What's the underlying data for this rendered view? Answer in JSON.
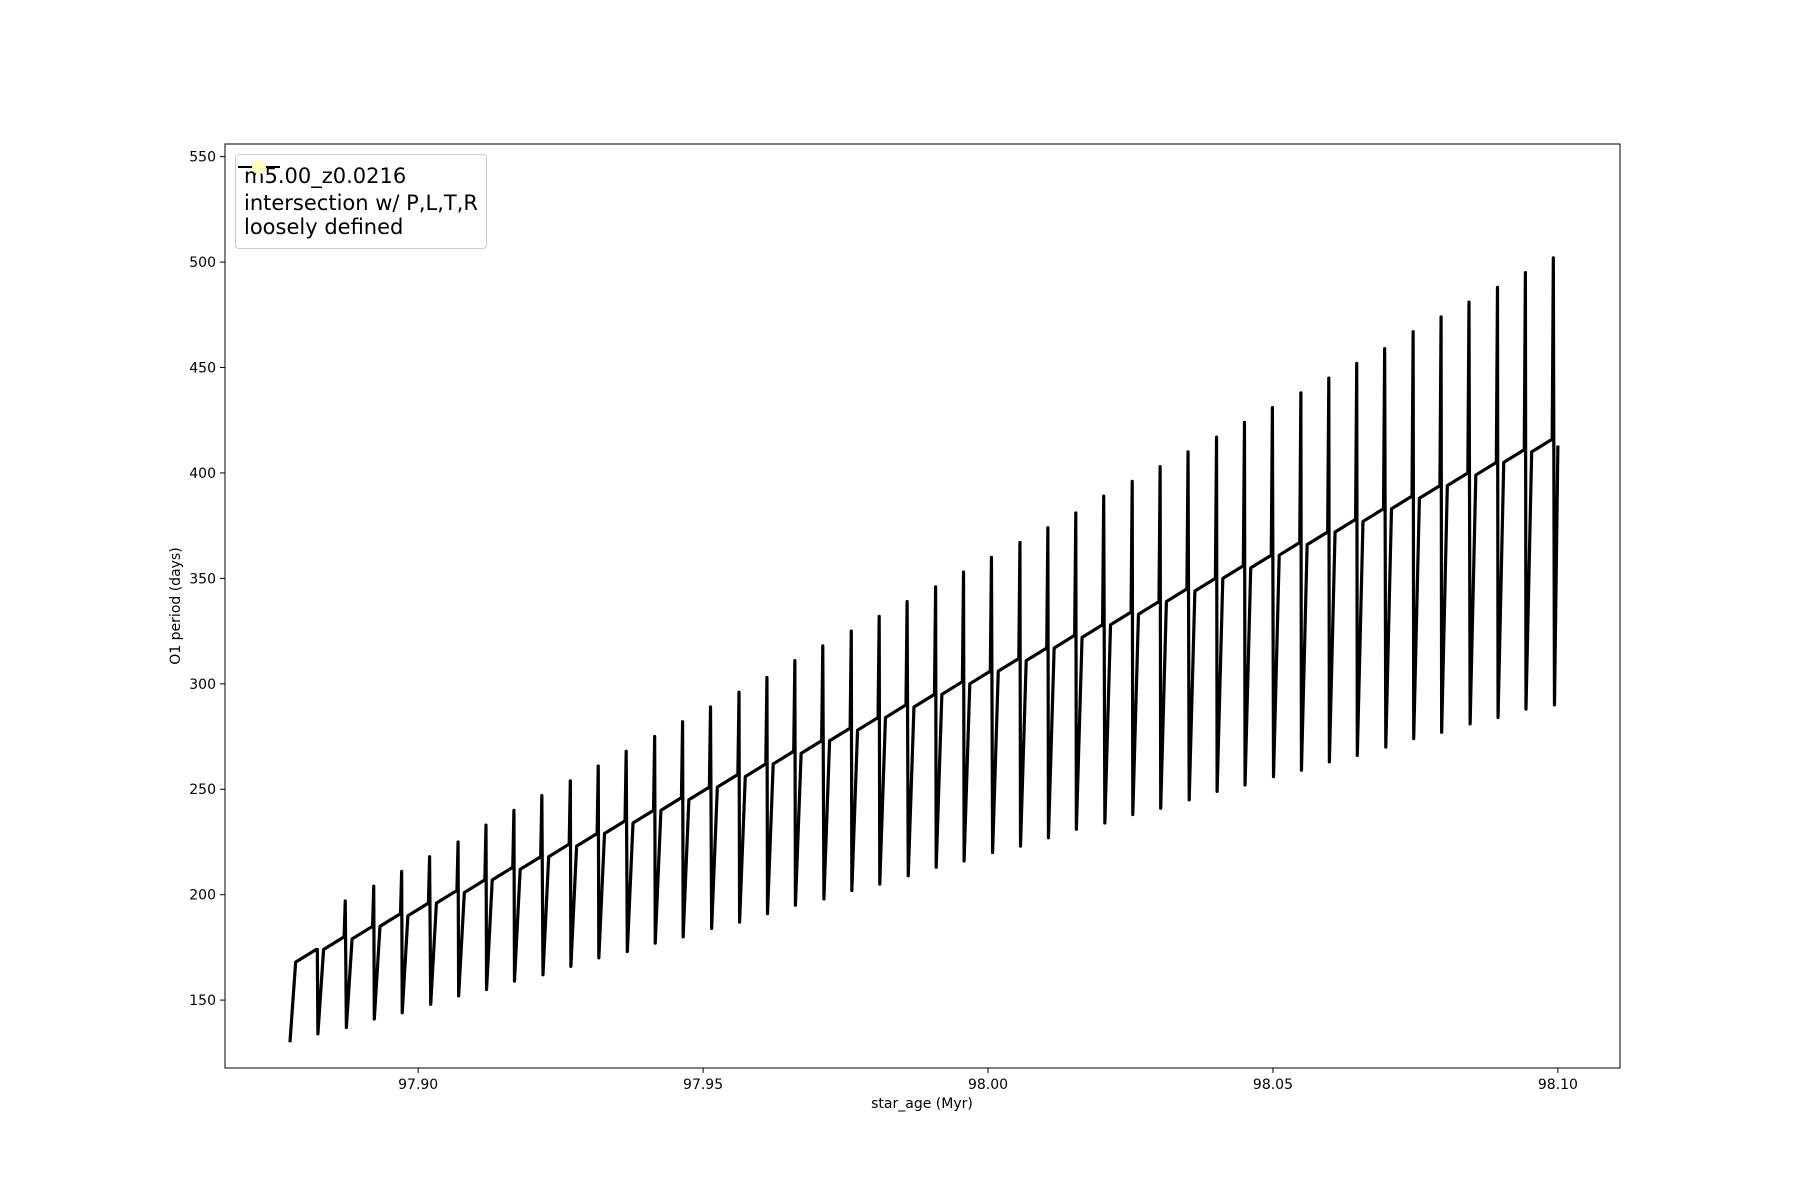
{
  "chart_data": {
    "type": "line",
    "xlabel": "star_age (Myr)",
    "ylabel": "O1 period (days)",
    "xlim": [
      97.8661,
      98.1109
    ],
    "ylim": [
      117.8,
      556
    ],
    "xticks": [
      {
        "value": 97.9,
        "label": "97.90"
      },
      {
        "value": 97.95,
        "label": "97.95"
      },
      {
        "value": 98.0,
        "label": "98.00"
      },
      {
        "value": 98.05,
        "label": "98.05"
      },
      {
        "value": 98.1,
        "label": "98.10"
      }
    ],
    "yticks": [
      150,
      200,
      250,
      300,
      350,
      400,
      450,
      500,
      550
    ],
    "grid": false,
    "legend": "upper left",
    "series": [
      {
        "name": "m5.00_z0.0216",
        "type": "line",
        "color": "#000000",
        "x": [
          97.8775,
          97.8785,
          97.8821,
          97.8823,
          97.8824,
          97.8834,
          97.887,
          97.8872,
          97.8874,
          97.8884,
          97.892,
          97.8922,
          97.8923,
          97.8933,
          97.8969,
          97.8971,
          97.8972,
          97.8982,
          97.9018,
          97.902,
          97.9022,
          97.9032,
          97.9068,
          97.907,
          97.9071,
          97.9081,
          97.9117,
          97.9119,
          97.912,
          97.913,
          97.9166,
          97.9168,
          97.9169,
          97.9179,
          97.9215,
          97.9217,
          97.9219,
          97.9229,
          97.9265,
          97.9267,
          97.9268,
          97.9278,
          97.9314,
          97.9316,
          97.9317,
          97.9327,
          97.9363,
          97.9365,
          97.9367,
          97.9377,
          97.9413,
          97.9415,
          97.9416,
          97.9426,
          97.9462,
          97.9464,
          97.9465,
          97.9475,
          97.9511,
          97.9513,
          97.9515,
          97.9525,
          97.9561,
          97.9563,
          97.9564,
          97.9574,
          97.961,
          97.9612,
          97.9613,
          97.9623,
          97.9659,
          97.9661,
          97.9662,
          97.9672,
          97.9708,
          97.971,
          97.9712,
          97.9722,
          97.9758,
          97.976,
          97.9761,
          97.9771,
          97.9807,
          97.9809,
          97.981,
          97.982,
          97.9856,
          97.9858,
          97.986,
          97.987,
          97.9906,
          97.9908,
          97.9909,
          97.9919,
          97.9955,
          97.9957,
          97.9958,
          97.9968,
          98.0004,
          98.0006,
          98.0008,
          98.0018,
          98.0054,
          98.0056,
          98.0057,
          98.0067,
          98.0103,
          98.0105,
          98.0106,
          98.0116,
          98.0152,
          98.0154,
          98.0155,
          98.0165,
          98.0201,
          98.0203,
          98.0205,
          98.0215,
          98.0251,
          98.0253,
          98.0254,
          98.0264,
          98.03,
          98.0302,
          98.0303,
          98.0313,
          98.0349,
          98.0351,
          98.0353,
          98.0363,
          98.0399,
          98.0401,
          98.0402,
          98.0412,
          98.0448,
          98.045,
          98.0451,
          98.0461,
          98.0497,
          98.0499,
          98.0501,
          98.0511,
          98.0547,
          98.0549,
          98.055,
          98.056,
          98.0596,
          98.0598,
          98.0599,
          98.0609,
          98.0645,
          98.0647,
          98.0648,
          98.0658,
          98.0694,
          98.0696,
          98.0698,
          98.0708,
          98.0744,
          98.0746,
          98.0747,
          98.0757,
          98.0793,
          98.0795,
          98.0796,
          98.0806,
          98.0842,
          98.0844,
          98.0846,
          98.0856,
          98.0892,
          98.0894,
          98.0895,
          98.0905,
          98.0941,
          98.0943,
          98.0944,
          98.0954,
          98.099,
          98.0992,
          98.0994,
          98.1
        ],
        "values": [
          130,
          168,
          174,
          174,
          134,
          174,
          180,
          197,
          137,
          179,
          185,
          204,
          141,
          185,
          191,
          211,
          144,
          190,
          196,
          218,
          148,
          196,
          202,
          225,
          152,
          201,
          207,
          233,
          155,
          207,
          213,
          240,
          159,
          212,
          218,
          247,
          162,
          218,
          224,
          254,
          166,
          223,
          229,
          261,
          170,
          229,
          235,
          268,
          173,
          234,
          240,
          275,
          177,
          240,
          246,
          282,
          180,
          245,
          251,
          289,
          184,
          251,
          257,
          296,
          187,
          256,
          262,
          303,
          191,
          262,
          268,
          311,
          195,
          267,
          273,
          318,
          198,
          273,
          279,
          325,
          202,
          278,
          284,
          332,
          205,
          284,
          290,
          339,
          209,
          289,
          295,
          346,
          213,
          295,
          301,
          353,
          216,
          300,
          306,
          360,
          220,
          306,
          312,
          367,
          223,
          311,
          317,
          374,
          227,
          317,
          323,
          381,
          231,
          322,
          328,
          389,
          234,
          328,
          334,
          396,
          238,
          333,
          339,
          403,
          241,
          339,
          345,
          410,
          245,
          344,
          350,
          417,
          249,
          350,
          356,
          424,
          252,
          355,
          361,
          431,
          256,
          361,
          367,
          438,
          259,
          366,
          372,
          445,
          263,
          372,
          378,
          452,
          266,
          377,
          383,
          459,
          270,
          383,
          389,
          467,
          274,
          388,
          394,
          474,
          277,
          394,
          400,
          481,
          281,
          399,
          405,
          488,
          284,
          405,
          411,
          495,
          288,
          410,
          416,
          502,
          290,
          413
        ]
      },
      {
        "name": "intersection w/ P,L,T,R\nloosely defined",
        "type": "scatter",
        "color": "#ffffc0",
        "x": [],
        "values": []
      }
    ]
  }
}
